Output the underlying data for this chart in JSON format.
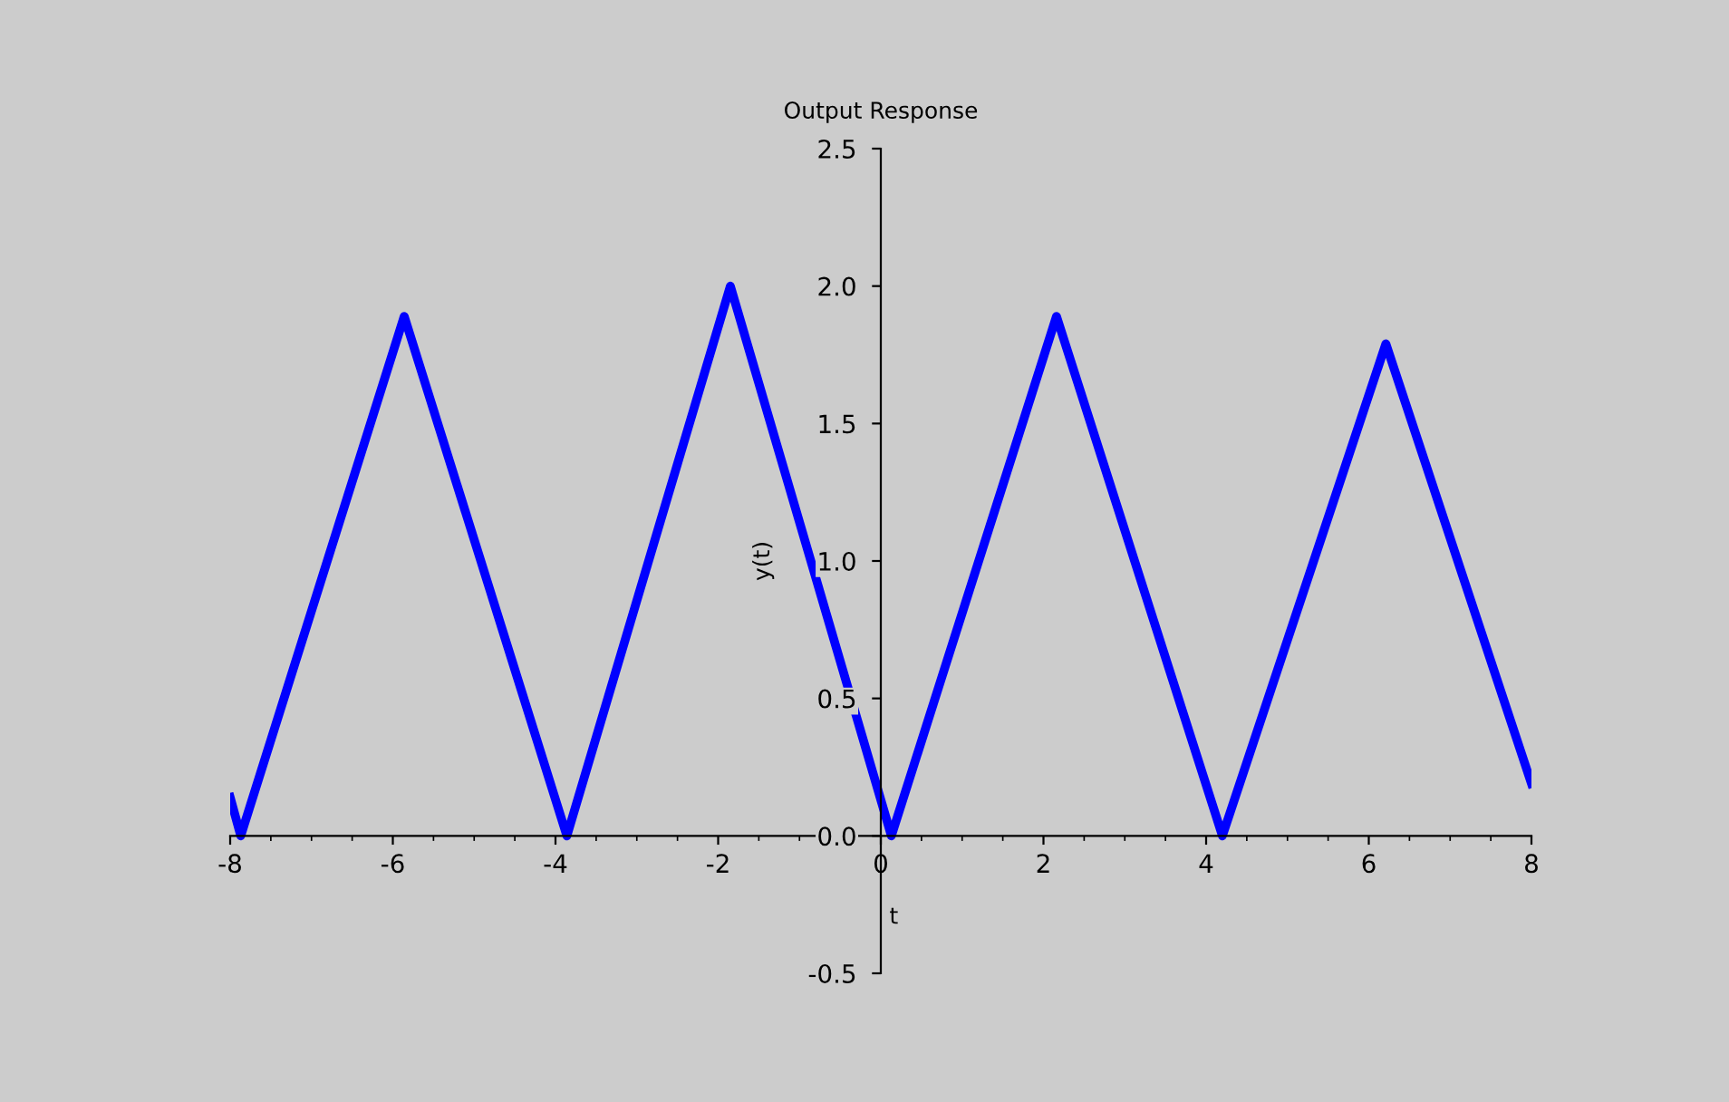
{
  "chart_data": {
    "type": "line",
    "title": "Output Response",
    "xlabel": "t",
    "ylabel": "y(t)",
    "series": [
      {
        "color": "#0000ff",
        "x": [
          -8,
          -7.87,
          -5.86,
          -3.86,
          -1.85,
          0.13,
          2.16,
          4.2,
          6.21,
          8
        ],
        "values": [
          0.14,
          0,
          1.89,
          0,
          2.0,
          0,
          1.89,
          0,
          1.79,
          0.19
        ]
      }
    ],
    "xlim": [
      -8,
      8
    ],
    "xticks": [
      -8,
      -6,
      -4,
      -2,
      0,
      2,
      4,
      6,
      8
    ],
    "ylim": [
      -0.5,
      2.5
    ],
    "yticks": [
      {
        "value": -0.5,
        "label": "-0.5"
      },
      {
        "value": 0,
        "label": "0.0"
      },
      {
        "value": 0.5,
        "label": "0.5"
      },
      {
        "value": 1,
        "label": "1.0"
      },
      {
        "value": 1.5,
        "label": "1.5"
      },
      {
        "value": 2,
        "label": "2.0"
      },
      {
        "value": 2.5,
        "label": "2.5"
      }
    ],
    "grid": false,
    "legend": false,
    "marker": "none",
    "line_style": "solid"
  }
}
